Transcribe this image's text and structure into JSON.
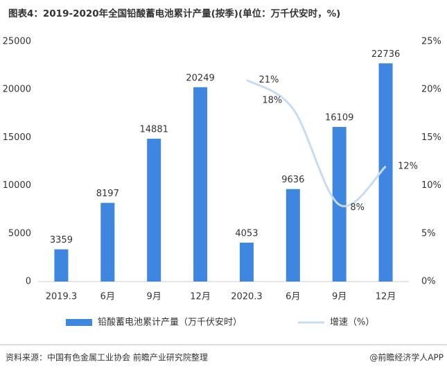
{
  "chart_data": {
    "type": "bar",
    "title": "图表4：2019-2020年全国铅酸蓄电池累计产量(按季)(单位：万千伏安时，%)",
    "categories": [
      "2019.3",
      "6月",
      "9月",
      "12月",
      "2020.3",
      "6月",
      "9月",
      "12月"
    ],
    "series": [
      {
        "name": "铅酸蓄电池累计产量（万千伏安时）",
        "type": "bar",
        "color": "#3f86e0",
        "values": [
          3359,
          8197,
          14881,
          20249,
          4053,
          9636,
          16109,
          22736
        ]
      },
      {
        "name": "增速（%）",
        "type": "line",
        "axis": "y2",
        "color": "#c6dcf3",
        "values": [
          null,
          null,
          null,
          null,
          21,
          18,
          8,
          12
        ],
        "value_labels": [
          null,
          null,
          null,
          null,
          "21%",
          "18%",
          "8%",
          "12%"
        ]
      }
    ],
    "ylim": [
      0,
      25000
    ],
    "yticks": [
      0,
      5000,
      10000,
      15000,
      20000,
      25000
    ],
    "y2lim": [
      0,
      25
    ],
    "y2ticks": [
      {
        "value": 0,
        "label": "0%"
      },
      {
        "value": 5,
        "label": "5%"
      },
      {
        "value": 10,
        "label": "10%"
      },
      {
        "value": 15,
        "label": "15%"
      },
      {
        "value": 20,
        "label": "20%"
      },
      {
        "value": 25,
        "label": "25%"
      }
    ],
    "grid": false,
    "legend": "bottom",
    "source": "资料来源：中国有色金属工业协会 前瞻产业研究院整理",
    "credit": "@前瞻经济学人APP"
  }
}
